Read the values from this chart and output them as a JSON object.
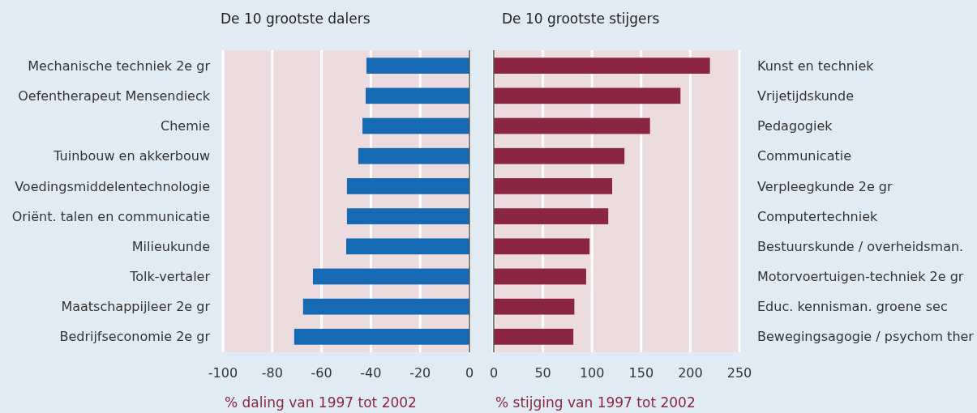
{
  "chart_data": [
    {
      "type": "bar",
      "orientation": "horizontal",
      "title": "De 10 grootste dalers",
      "xlabel": "% daling van 1997 tot 2002",
      "categories": [
        "Mechanische techniek 2e gr",
        "Oefentherapeut Mensendieck",
        "Chemie",
        "Tuinbouw en akkerbouw",
        "Voedingsmiddelentechnologie",
        "Oriënt. talen en communicatie",
        "Milieukunde",
        "Tolk-vertaler",
        "Maatschappijleer 2e gr",
        "Bedrijfseconomie 2e gr"
      ],
      "values": [
        -41.8,
        -42.1,
        -43.4,
        -45.1,
        -49.7,
        -49.7,
        -50,
        -63.5,
        -67.5,
        -71.1
      ],
      "color": "#1669b3",
      "xlim": [
        -100,
        0
      ],
      "xticks": [
        -100,
        -80,
        -60,
        -40,
        -20,
        0
      ],
      "grid": "x"
    },
    {
      "type": "bar",
      "orientation": "horizontal",
      "title": "De 10 grootste stijgers",
      "xlabel": "% stijging van 1997 tot 2002",
      "categories": [
        "Kunst en techniek",
        "Vrijetijdskunde",
        "Pedagogiek",
        "Communicatie",
        "Verpleegkunde 2e gr",
        "Computertechniek",
        "Bestuurskunde / overheidsman.",
        "Motorvoertuigen-techniek 2e gr",
        "Educ. kennisman. groene sec",
        "Bewegingsagogie / psychom ther"
      ],
      "values": [
        220,
        190,
        159,
        133,
        120.5,
        116.5,
        97.5,
        94,
        82,
        81
      ],
      "color": "#8b2642",
      "xlim": [
        0,
        250
      ],
      "xticks": [
        0,
        50,
        100,
        150,
        200,
        250
      ],
      "grid": "x"
    }
  ]
}
